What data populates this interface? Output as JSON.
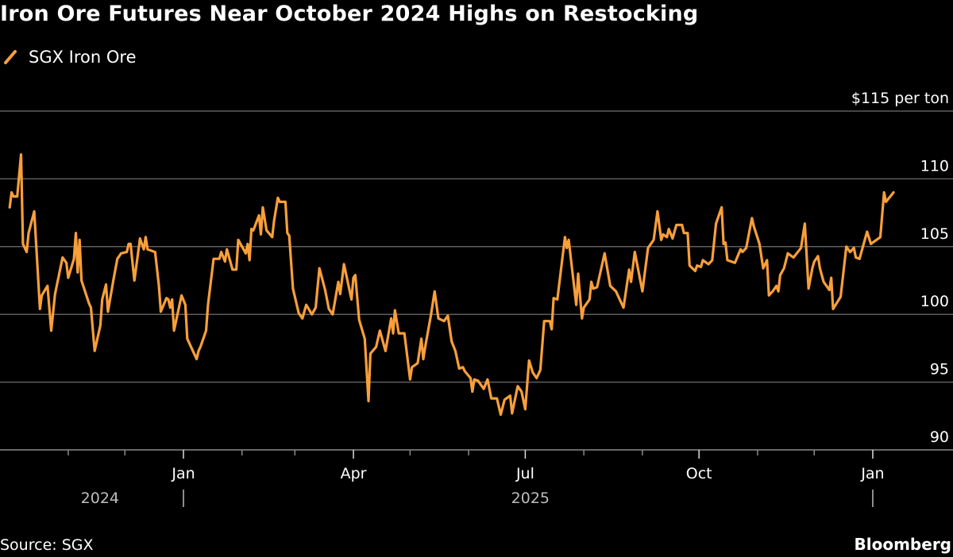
{
  "chart_data": {
    "type": "line",
    "title": "Iron Ore Futures Near October 2024 Highs on Restocking",
    "ylabel": "",
    "y_unit_label": "$115 per ton",
    "ylim": [
      90,
      115
    ],
    "yticks": [
      90,
      95,
      100,
      105,
      110,
      115
    ],
    "ytick_labels": [
      "90",
      "95",
      "100",
      "105",
      "110",
      "$115 per ton"
    ],
    "xticks_major": [
      {
        "date": "2025-01-01",
        "label": "Jan"
      },
      {
        "date": "2025-04-01",
        "label": "Apr"
      },
      {
        "date": "2025-07-01",
        "label": "Jul"
      },
      {
        "date": "2025-10-01",
        "label": "Oct"
      },
      {
        "date": "2026-01-01",
        "label": "Jan"
      }
    ],
    "xticks_minor": [
      "2024-11-01",
      "2024-12-01",
      "2025-02-01",
      "2025-03-01",
      "2025-05-01",
      "2025-06-01",
      "2025-08-01",
      "2025-09-01",
      "2025-11-01",
      "2025-12-01"
    ],
    "year_labels": [
      "2024",
      "2025"
    ],
    "grid": true,
    "legend_position": "top-left",
    "series": [
      {
        "name": "SGX Iron Ore",
        "color": "#f99f3a",
        "points": [
          [
            "2024-10-01",
            107.9
          ],
          [
            "2024-10-02",
            109.0
          ],
          [
            "2024-10-03",
            108.7
          ],
          [
            "2024-10-05",
            108.7
          ],
          [
            "2024-10-07",
            111.8
          ],
          [
            "2024-10-08",
            105.2
          ],
          [
            "2024-10-10",
            104.6
          ],
          [
            "2024-10-11",
            106.0
          ],
          [
            "2024-10-14",
            107.6
          ],
          [
            "2024-10-17",
            100.4
          ],
          [
            "2024-10-18",
            101.4
          ],
          [
            "2024-10-21",
            102.1
          ],
          [
            "2024-10-23",
            98.8
          ],
          [
            "2024-10-25",
            101.5
          ],
          [
            "2024-10-29",
            104.2
          ],
          [
            "2024-10-31",
            103.8
          ],
          [
            "2024-11-01",
            102.7
          ],
          [
            "2024-11-04",
            104.1
          ],
          [
            "2024-11-05",
            106.0
          ],
          [
            "2024-11-06",
            103.1
          ],
          [
            "2024-11-07",
            105.5
          ],
          [
            "2024-11-08",
            102.5
          ],
          [
            "2024-11-12",
            100.8
          ],
          [
            "2024-11-13",
            100.5
          ],
          [
            "2024-11-15",
            97.3
          ],
          [
            "2024-11-18",
            99.2
          ],
          [
            "2024-11-19",
            101.1
          ],
          [
            "2024-11-21",
            102.2
          ],
          [
            "2024-11-22",
            100.2
          ],
          [
            "2024-11-25",
            102.6
          ],
          [
            "2024-11-27",
            104.1
          ],
          [
            "2024-11-29",
            104.5
          ],
          [
            "2024-12-02",
            104.6
          ],
          [
            "2024-12-03",
            105.2
          ],
          [
            "2024-12-04",
            105.2
          ],
          [
            "2024-12-06",
            102.5
          ],
          [
            "2024-12-09",
            105.6
          ],
          [
            "2024-12-11",
            104.8
          ],
          [
            "2024-12-12",
            105.7
          ],
          [
            "2024-12-13",
            104.8
          ],
          [
            "2024-12-17",
            104.6
          ],
          [
            "2024-12-19",
            102.1
          ],
          [
            "2024-12-20",
            100.2
          ],
          [
            "2024-12-23",
            101.2
          ],
          [
            "2024-12-24",
            101.1
          ],
          [
            "2024-12-25",
            100.5
          ],
          [
            "2024-12-26",
            101.1
          ],
          [
            "2024-12-27",
            98.8
          ],
          [
            "2024-12-31",
            101.4
          ],
          [
            "2025-01-02",
            100.7
          ],
          [
            "2025-01-03",
            98.2
          ],
          [
            "2025-01-08",
            96.7
          ],
          [
            "2025-01-09",
            97.3
          ],
          [
            "2025-01-10",
            97.6
          ],
          [
            "2025-01-13",
            98.8
          ],
          [
            "2025-01-14",
            100.7
          ],
          [
            "2025-01-17",
            104.1
          ],
          [
            "2025-01-20",
            104.1
          ],
          [
            "2025-01-21",
            104.6
          ],
          [
            "2025-01-23",
            103.9
          ],
          [
            "2025-01-24",
            104.8
          ],
          [
            "2025-01-27",
            103.3
          ],
          [
            "2025-01-29",
            103.3
          ],
          [
            "2025-01-30",
            105.5
          ],
          [
            "2025-02-03",
            104.5
          ],
          [
            "2025-02-04",
            105.2
          ],
          [
            "2025-02-05",
            104.0
          ],
          [
            "2025-02-06",
            106.3
          ],
          [
            "2025-02-07",
            106.2
          ],
          [
            "2025-02-10",
            107.3
          ],
          [
            "2025-02-11",
            105.9
          ],
          [
            "2025-02-12",
            107.9
          ],
          [
            "2025-02-14",
            106.2
          ],
          [
            "2025-02-17",
            105.7
          ],
          [
            "2025-02-18",
            106.9
          ],
          [
            "2025-02-20",
            108.6
          ],
          [
            "2025-02-21",
            108.3
          ],
          [
            "2025-02-24",
            108.3
          ],
          [
            "2025-02-25",
            106.0
          ],
          [
            "2025-02-26",
            105.8
          ],
          [
            "2025-02-28",
            101.9
          ],
          [
            "2025-03-03",
            100.1
          ],
          [
            "2025-03-05",
            99.7
          ],
          [
            "2025-03-07",
            100.7
          ],
          [
            "2025-03-10",
            100.0
          ],
          [
            "2025-03-12",
            100.5
          ],
          [
            "2025-03-14",
            103.4
          ],
          [
            "2025-03-17",
            101.8
          ],
          [
            "2025-03-19",
            100.4
          ],
          [
            "2025-03-21",
            100.0
          ],
          [
            "2025-03-24",
            102.4
          ],
          [
            "2025-03-25",
            101.5
          ],
          [
            "2025-03-27",
            103.7
          ],
          [
            "2025-03-31",
            101.1
          ],
          [
            "2025-04-01",
            102.7
          ],
          [
            "2025-04-02",
            102.9
          ],
          [
            "2025-04-04",
            99.6
          ],
          [
            "2025-04-07",
            98.2
          ],
          [
            "2025-04-09",
            93.6
          ],
          [
            "2025-04-10",
            97.1
          ],
          [
            "2025-04-13",
            97.6
          ],
          [
            "2025-04-15",
            98.8
          ],
          [
            "2025-04-18",
            97.3
          ],
          [
            "2025-04-21",
            99.7
          ],
          [
            "2025-04-22",
            98.6
          ],
          [
            "2025-04-23",
            100.3
          ],
          [
            "2025-04-25",
            98.6
          ],
          [
            "2025-04-28",
            98.6
          ],
          [
            "2025-05-01",
            95.2
          ],
          [
            "2025-05-02",
            96.1
          ],
          [
            "2025-05-05",
            96.4
          ],
          [
            "2025-05-07",
            98.2
          ],
          [
            "2025-05-08",
            96.7
          ],
          [
            "2025-05-09",
            97.6
          ],
          [
            "2025-05-12",
            99.9
          ],
          [
            "2025-05-14",
            101.7
          ],
          [
            "2025-05-16",
            99.7
          ],
          [
            "2025-05-19",
            99.5
          ],
          [
            "2025-05-21",
            99.9
          ],
          [
            "2025-05-23",
            98.0
          ],
          [
            "2025-05-25",
            97.3
          ],
          [
            "2025-05-27",
            96.0
          ],
          [
            "2025-05-29",
            96.1
          ],
          [
            "2025-05-30",
            95.8
          ],
          [
            "2025-06-02",
            95.3
          ],
          [
            "2025-06-03",
            94.3
          ],
          [
            "2025-06-04",
            95.2
          ],
          [
            "2025-06-06",
            95.1
          ],
          [
            "2025-06-09",
            94.5
          ],
          [
            "2025-06-11",
            95.2
          ],
          [
            "2025-06-13",
            93.8
          ],
          [
            "2025-06-16",
            93.8
          ],
          [
            "2025-06-18",
            92.6
          ],
          [
            "2025-06-20",
            93.7
          ],
          [
            "2025-06-23",
            94.0
          ],
          [
            "2025-06-24",
            92.7
          ],
          [
            "2025-06-27",
            94.7
          ],
          [
            "2025-06-29",
            94.3
          ],
          [
            "2025-07-01",
            93.0
          ],
          [
            "2025-07-03",
            96.6
          ],
          [
            "2025-07-05",
            95.7
          ],
          [
            "2025-07-07",
            95.3
          ],
          [
            "2025-07-09",
            95.9
          ],
          [
            "2025-07-11",
            99.5
          ],
          [
            "2025-07-14",
            99.5
          ],
          [
            "2025-07-15",
            98.9
          ],
          [
            "2025-07-16",
            101.2
          ],
          [
            "2025-07-18",
            101.1
          ],
          [
            "2025-07-22",
            105.7
          ],
          [
            "2025-07-23",
            104.9
          ],
          [
            "2025-07-24",
            105.5
          ],
          [
            "2025-07-28",
            100.7
          ],
          [
            "2025-07-29",
            103.0
          ],
          [
            "2025-07-31",
            99.7
          ],
          [
            "2025-08-01",
            100.5
          ],
          [
            "2025-08-04",
            101.1
          ],
          [
            "2025-08-05",
            102.4
          ],
          [
            "2025-08-06",
            101.9
          ],
          [
            "2025-08-08",
            102.0
          ],
          [
            "2025-08-12",
            104.5
          ],
          [
            "2025-08-15",
            102.1
          ],
          [
            "2025-08-18",
            101.7
          ],
          [
            "2025-08-20",
            101.1
          ],
          [
            "2025-08-22",
            100.5
          ],
          [
            "2025-08-25",
            103.3
          ],
          [
            "2025-08-26",
            102.4
          ],
          [
            "2025-08-28",
            104.6
          ],
          [
            "2025-09-01",
            101.7
          ],
          [
            "2025-09-04",
            104.9
          ],
          [
            "2025-09-07",
            105.5
          ],
          [
            "2025-09-09",
            107.6
          ],
          [
            "2025-09-11",
            105.5
          ],
          [
            "2025-09-12",
            105.9
          ],
          [
            "2025-09-14",
            105.7
          ],
          [
            "2025-09-15",
            106.3
          ],
          [
            "2025-09-17",
            105.6
          ],
          [
            "2025-09-19",
            106.6
          ],
          [
            "2025-09-22",
            106.6
          ],
          [
            "2025-09-23",
            106.0
          ],
          [
            "2025-09-25",
            106.0
          ],
          [
            "2025-09-26",
            103.6
          ],
          [
            "2025-09-29",
            103.2
          ],
          [
            "2025-09-30",
            103.6
          ],
          [
            "2025-10-02",
            103.5
          ],
          [
            "2025-10-03",
            104.0
          ],
          [
            "2025-10-06",
            103.7
          ],
          [
            "2025-10-08",
            104.0
          ],
          [
            "2025-10-10",
            106.7
          ],
          [
            "2025-10-13",
            107.9
          ],
          [
            "2025-10-14",
            105.2
          ],
          [
            "2025-10-15",
            105.3
          ],
          [
            "2025-10-16",
            104.0
          ],
          [
            "2025-10-20",
            103.8
          ],
          [
            "2025-10-23",
            104.8
          ],
          [
            "2025-10-24",
            104.6
          ],
          [
            "2025-10-26",
            104.9
          ],
          [
            "2025-10-29",
            107.1
          ],
          [
            "2025-10-30",
            106.5
          ],
          [
            "2025-11-02",
            105.2
          ],
          [
            "2025-11-04",
            103.4
          ],
          [
            "2025-11-06",
            104.0
          ],
          [
            "2025-11-07",
            101.4
          ],
          [
            "2025-11-09",
            101.7
          ],
          [
            "2025-11-11",
            102.1
          ],
          [
            "2025-11-12",
            101.7
          ],
          [
            "2025-11-13",
            102.9
          ],
          [
            "2025-11-15",
            103.4
          ],
          [
            "2025-11-17",
            104.5
          ],
          [
            "2025-11-20",
            104.2
          ],
          [
            "2025-11-24",
            104.9
          ],
          [
            "2025-11-26",
            106.7
          ],
          [
            "2025-11-28",
            101.9
          ],
          [
            "2025-11-30",
            103.4
          ],
          [
            "2025-12-01",
            103.9
          ],
          [
            "2025-12-03",
            104.3
          ],
          [
            "2025-12-04",
            103.4
          ],
          [
            "2025-12-06",
            102.4
          ],
          [
            "2025-12-09",
            101.8
          ],
          [
            "2025-12-10",
            102.7
          ],
          [
            "2025-12-11",
            100.4
          ],
          [
            "2025-12-15",
            101.3
          ],
          [
            "2025-12-18",
            105.0
          ],
          [
            "2025-12-20",
            104.6
          ],
          [
            "2025-12-22",
            104.9
          ],
          [
            "2025-12-23",
            104.2
          ],
          [
            "2025-12-25",
            104.1
          ],
          [
            "2025-12-29",
            106.1
          ],
          [
            "2025-12-31",
            105.2
          ],
          [
            "2026-01-05",
            105.7
          ],
          [
            "2026-01-07",
            109.0
          ],
          [
            "2026-01-08",
            108.3
          ],
          [
            "2026-01-12",
            109.0
          ]
        ]
      }
    ],
    "source": "Source: SGX",
    "brand": "Bloomberg"
  }
}
